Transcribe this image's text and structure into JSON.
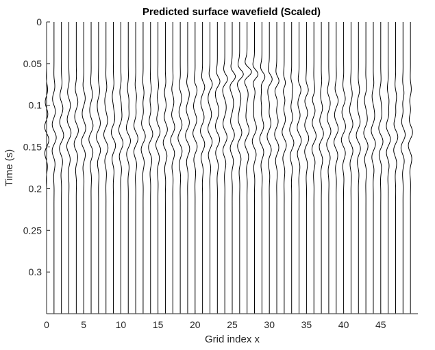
{
  "chart_data": {
    "type": "line",
    "title": "Predicted surface wavefield (Scaled)",
    "xlabel": "Grid index x",
    "ylabel": "Time (s)",
    "xlim": [
      0,
      50
    ],
    "ylim": [
      0,
      0.35
    ],
    "y_reversed": true,
    "xticks": [
      0,
      5,
      10,
      15,
      20,
      25,
      30,
      35,
      40,
      45
    ],
    "yticks": [
      0,
      0.05,
      0.1,
      0.15,
      0.2,
      0.25,
      0.3
    ],
    "ytick_labels": [
      "0",
      "0.05",
      "0.1",
      "0.15",
      "0.2",
      "0.25",
      "0.3"
    ],
    "grid": false,
    "trace_count": 50,
    "wiggle_style": "scaled traces offset by grid index",
    "events": [
      {
        "name": "direct arrival apex",
        "x": 27,
        "t": 0.06
      },
      {
        "name": "main energy band",
        "t_start": 0.1,
        "t_end": 0.18
      }
    ]
  }
}
